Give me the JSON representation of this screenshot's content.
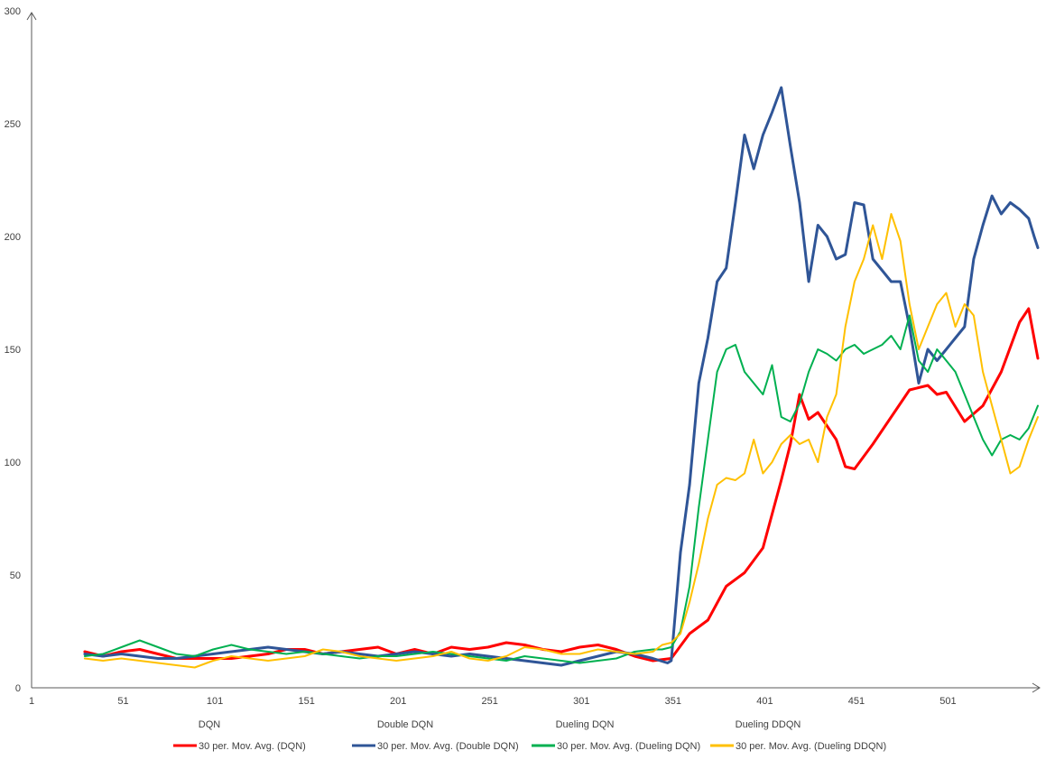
{
  "chart_data": {
    "type": "line",
    "title": "",
    "xlabel": "",
    "ylabel": "",
    "xlim": [
      1,
      550
    ],
    "ylim": [
      0,
      300
    ],
    "x_ticks": [
      1,
      51,
      101,
      151,
      201,
      251,
      301,
      351,
      401,
      451,
      501
    ],
    "y_ticks": [
      0,
      50,
      100,
      150,
      200,
      250,
      300
    ],
    "category_labels": [
      "DQN",
      "Double DQN",
      "Dueling DQN",
      "Dueling DDQN"
    ],
    "grid": false,
    "legend_position": "bottom",
    "series": [
      {
        "name": "30 per. Mov. Avg. (DQN)",
        "color": "#ff0000",
        "x": [
          30,
          40,
          50,
          60,
          70,
          80,
          90,
          100,
          110,
          120,
          130,
          140,
          150,
          160,
          170,
          180,
          190,
          200,
          210,
          220,
          230,
          240,
          250,
          260,
          270,
          280,
          290,
          300,
          310,
          320,
          330,
          340,
          350,
          360,
          370,
          380,
          390,
          400,
          410,
          415,
          420,
          425,
          430,
          440,
          445,
          450,
          460,
          470,
          480,
          490,
          495,
          500,
          510,
          520,
          530,
          540,
          545,
          550
        ],
        "y": [
          16,
          14,
          16,
          17,
          15,
          13,
          13,
          13,
          13,
          14,
          15,
          17,
          17,
          15,
          16,
          17,
          18,
          15,
          17,
          15,
          18,
          17,
          18,
          20,
          19,
          17,
          16,
          18,
          19,
          17,
          14,
          12,
          13,
          24,
          30,
          45,
          51,
          62,
          92,
          108,
          130,
          119,
          122,
          110,
          98,
          97,
          108,
          120,
          132,
          134,
          130,
          131,
          118,
          125,
          140,
          162,
          168,
          146
        ]
      },
      {
        "name": "30 per. Mov. Avg. (Double DQN)",
        "color": "#2f5597",
        "x": [
          30,
          40,
          50,
          60,
          70,
          80,
          90,
          100,
          110,
          120,
          130,
          140,
          150,
          160,
          170,
          180,
          190,
          200,
          210,
          220,
          230,
          240,
          250,
          260,
          270,
          280,
          290,
          300,
          310,
          320,
          330,
          340,
          348,
          350,
          355,
          360,
          365,
          370,
          375,
          380,
          385,
          390,
          395,
          400,
          405,
          410,
          415,
          420,
          425,
          430,
          435,
          440,
          445,
          450,
          455,
          460,
          465,
          470,
          475,
          480,
          485,
          490,
          495,
          500,
          505,
          510,
          515,
          520,
          525,
          530,
          535,
          540,
          545,
          548,
          550
        ],
        "y": [
          15,
          14,
          15,
          14,
          13,
          13,
          14,
          15,
          16,
          17,
          18,
          17,
          16,
          15,
          16,
          15,
          14,
          15,
          16,
          15,
          14,
          15,
          14,
          13,
          12,
          11,
          10,
          12,
          14,
          16,
          15,
          13,
          11,
          12,
          60,
          90,
          135,
          155,
          180,
          186,
          215,
          245,
          230,
          245,
          255,
          266,
          240,
          215,
          180,
          205,
          200,
          190,
          192,
          215,
          214,
          190,
          185,
          180,
          180,
          160,
          135,
          150,
          145,
          150,
          155,
          160,
          190,
          205,
          218,
          210,
          215,
          212,
          208,
          200,
          195
        ]
      },
      {
        "name": "30 per. Mov. Avg. (Dueling DQN)",
        "color": "#00b050",
        "x": [
          30,
          40,
          50,
          60,
          70,
          80,
          90,
          100,
          110,
          120,
          130,
          140,
          150,
          160,
          170,
          180,
          190,
          200,
          210,
          220,
          230,
          240,
          250,
          260,
          270,
          280,
          290,
          300,
          310,
          320,
          330,
          340,
          345,
          350,
          355,
          360,
          365,
          370,
          375,
          380,
          385,
          390,
          395,
          400,
          405,
          410,
          415,
          420,
          425,
          430,
          435,
          440,
          445,
          450,
          455,
          460,
          465,
          470,
          475,
          480,
          485,
          490,
          495,
          500,
          505,
          510,
          515,
          520,
          525,
          530,
          535,
          540,
          545,
          550
        ],
        "y": [
          14,
          15,
          18,
          21,
          18,
          15,
          14,
          17,
          19,
          17,
          16,
          15,
          16,
          15,
          14,
          13,
          14,
          14,
          15,
          16,
          15,
          14,
          13,
          12,
          14,
          13,
          12,
          11,
          12,
          13,
          16,
          17,
          17,
          18,
          25,
          45,
          80,
          110,
          140,
          150,
          152,
          140,
          135,
          130,
          143,
          120,
          118,
          126,
          140,
          150,
          148,
          145,
          150,
          152,
          148,
          150,
          152,
          156,
          150,
          165,
          145,
          140,
          150,
          145,
          140,
          130,
          120,
          110,
          103,
          110,
          112,
          110,
          115,
          125
        ]
      },
      {
        "name": "30 per. Mov. Avg. (Dueling DDQN)",
        "color": "#ffc000",
        "x": [
          30,
          40,
          50,
          60,
          70,
          80,
          90,
          100,
          110,
          120,
          130,
          140,
          150,
          160,
          170,
          180,
          190,
          200,
          210,
          220,
          230,
          240,
          250,
          260,
          270,
          280,
          290,
          300,
          310,
          320,
          330,
          340,
          345,
          350,
          355,
          360,
          365,
          370,
          375,
          380,
          385,
          390,
          395,
          400,
          405,
          410,
          415,
          420,
          425,
          430,
          435,
          440,
          445,
          450,
          455,
          460,
          465,
          470,
          475,
          480,
          485,
          490,
          495,
          500,
          505,
          510,
          515,
          520,
          525,
          530,
          535,
          540,
          545,
          550
        ],
        "y": [
          13,
          12,
          13,
          12,
          11,
          10,
          9,
          12,
          14,
          13,
          12,
          13,
          14,
          17,
          16,
          14,
          13,
          12,
          13,
          14,
          16,
          13,
          12,
          14,
          18,
          17,
          15,
          15,
          17,
          16,
          15,
          16,
          19,
          20,
          24,
          38,
          55,
          75,
          90,
          93,
          92,
          95,
          110,
          95,
          100,
          108,
          112,
          108,
          110,
          100,
          120,
          130,
          160,
          180,
          190,
          205,
          190,
          210,
          198,
          170,
          150,
          160,
          170,
          175,
          160,
          170,
          165,
          140,
          125,
          110,
          95,
          98,
          110,
          120
        ]
      }
    ]
  }
}
